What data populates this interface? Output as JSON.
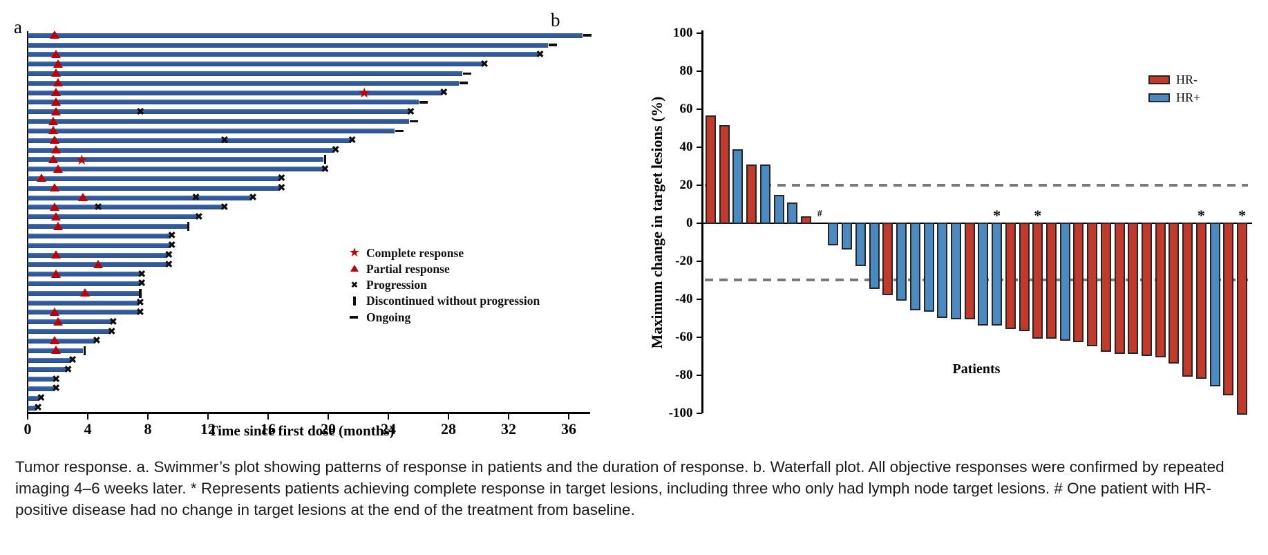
{
  "caption": "Tumor response. a. Swimmer’s plot showing patterns of response in patients and the duration of response. b. Waterfall plot. All objective responses were confirmed by repeated imaging 4–6 weeks later. * Represents patients achieving complete response in target lesions, including three who only had lymph node target lesions. # One patient with HR-positive disease had no change in target lesions at the end of the treatment from baseline.",
  "chart_data": [
    {
      "type": "swimmer",
      "panel_label": "a",
      "xlabel": "Time since first dose (months)",
      "xlim": [
        0,
        37.4
      ],
      "x_ticks": [
        0,
        4,
        8,
        12,
        16,
        20,
        24,
        28,
        32,
        36
      ],
      "bar_color": "#31599b",
      "response_marker_color": "#c00000",
      "progression_marker_color": "#0d0d0d",
      "legend": [
        {
          "marker": "star",
          "label": "Complete response"
        },
        {
          "marker": "triangle",
          "label": "Partial response"
        },
        {
          "marker": "x",
          "label": "Progression"
        },
        {
          "marker": "vbar",
          "label": "Discontinued without progression"
        },
        {
          "marker": "dash",
          "label": "Ongoing"
        }
      ],
      "patients": [
        {
          "duration": 36.9,
          "end": "ongoing",
          "events": [
            {
              "t": 1.8,
              "type": "pr"
            }
          ]
        },
        {
          "duration": 34.6,
          "end": "ongoing",
          "events": []
        },
        {
          "duration": 34.0,
          "end": "progression",
          "events": [
            {
              "t": 1.9,
              "type": "pr"
            }
          ]
        },
        {
          "duration": 30.3,
          "end": "progression",
          "events": [
            {
              "t": 2.0,
              "type": "pr"
            }
          ]
        },
        {
          "duration": 28.9,
          "end": "ongoing",
          "events": [
            {
              "t": 1.9,
              "type": "pr"
            }
          ]
        },
        {
          "duration": 28.7,
          "end": "ongoing",
          "events": [
            {
              "t": 2.0,
              "type": "pr"
            }
          ]
        },
        {
          "duration": 27.6,
          "end": "progression",
          "events": [
            {
              "t": 1.9,
              "type": "pr"
            },
            {
              "t": 22.4,
              "type": "cr"
            }
          ]
        },
        {
          "duration": 26.0,
          "end": "ongoing",
          "events": [
            {
              "t": 1.9,
              "type": "pr"
            }
          ]
        },
        {
          "duration": 25.4,
          "end": "progression",
          "events": [
            {
              "t": 1.9,
              "type": "pr"
            },
            {
              "t": 7.5,
              "type": "x"
            }
          ]
        },
        {
          "duration": 25.4,
          "end": "ongoing",
          "events": [
            {
              "t": 1.7,
              "type": "pr"
            }
          ]
        },
        {
          "duration": 24.4,
          "end": "ongoing",
          "events": [
            {
              "t": 1.7,
              "type": "pr"
            }
          ]
        },
        {
          "duration": 21.5,
          "end": "progression",
          "events": [
            {
              "t": 1.8,
              "type": "pr"
            },
            {
              "t": 13.1,
              "type": "x"
            }
          ]
        },
        {
          "duration": 20.4,
          "end": "progression",
          "events": [
            {
              "t": 1.9,
              "type": "pr"
            }
          ]
        },
        {
          "duration": 19.7,
          "end": "discontinued",
          "events": [
            {
              "t": 1.7,
              "type": "pr"
            },
            {
              "t": 3.6,
              "type": "cr"
            }
          ]
        },
        {
          "duration": 19.7,
          "end": "progression",
          "events": [
            {
              "t": 2.0,
              "type": "pr"
            }
          ]
        },
        {
          "duration": 16.8,
          "end": "progression",
          "events": [
            {
              "t": 0.9,
              "type": "pr"
            }
          ]
        },
        {
          "duration": 16.8,
          "end": "progression",
          "events": [
            {
              "t": 1.8,
              "type": "pr"
            }
          ]
        },
        {
          "duration": 14.9,
          "end": "progression",
          "events": [
            {
              "t": 3.7,
              "type": "pr"
            },
            {
              "t": 11.2,
              "type": "x"
            }
          ]
        },
        {
          "duration": 13.0,
          "end": "progression",
          "events": [
            {
              "t": 1.8,
              "type": "pr"
            },
            {
              "t": 4.7,
              "type": "x"
            }
          ]
        },
        {
          "duration": 11.3,
          "end": "progression",
          "events": [
            {
              "t": 1.9,
              "type": "pr"
            }
          ]
        },
        {
          "duration": 10.6,
          "end": "discontinued",
          "events": [
            {
              "t": 2.0,
              "type": "pr"
            }
          ]
        },
        {
          "duration": 9.5,
          "end": "progression",
          "events": []
        },
        {
          "duration": 9.5,
          "end": "progression",
          "events": []
        },
        {
          "duration": 9.3,
          "end": "progression",
          "events": [
            {
              "t": 1.9,
              "type": "pr"
            }
          ]
        },
        {
          "duration": 9.3,
          "end": "progression",
          "events": [
            {
              "t": 4.7,
              "type": "pr"
            }
          ]
        },
        {
          "duration": 7.5,
          "end": "progression",
          "events": [
            {
              "t": 1.9,
              "type": "pr"
            }
          ]
        },
        {
          "duration": 7.5,
          "end": "progression",
          "events": []
        },
        {
          "duration": 7.4,
          "end": "discontinued",
          "events": [
            {
              "t": 3.8,
              "type": "pr"
            }
          ]
        },
        {
          "duration": 7.4,
          "end": "progression",
          "events": []
        },
        {
          "duration": 7.4,
          "end": "progression",
          "events": [
            {
              "t": 1.8,
              "type": "pr"
            }
          ]
        },
        {
          "duration": 5.6,
          "end": "progression",
          "events": [
            {
              "t": 2.0,
              "type": "pr"
            }
          ]
        },
        {
          "duration": 5.5,
          "end": "progression",
          "events": []
        },
        {
          "duration": 4.5,
          "end": "progression",
          "events": [
            {
              "t": 1.8,
              "type": "pr"
            }
          ]
        },
        {
          "duration": 3.7,
          "end": "discontinued",
          "events": [
            {
              "t": 1.9,
              "type": "pr"
            }
          ]
        },
        {
          "duration": 2.9,
          "end": "progression",
          "events": []
        },
        {
          "duration": 2.6,
          "end": "progression",
          "events": []
        },
        {
          "duration": 1.8,
          "end": "progression",
          "events": []
        },
        {
          "duration": 1.8,
          "end": "progression",
          "events": []
        },
        {
          "duration": 0.8,
          "end": "progression",
          "events": []
        },
        {
          "duration": 0.6,
          "end": "progression",
          "events": []
        }
      ]
    },
    {
      "type": "waterfall",
      "panel_label": "b",
      "xlabel": "Patients",
      "ylabel": "Maximum change in target lesions (%)",
      "ylim": [
        -100,
        100
      ],
      "y_ticks": [
        100,
        80,
        60,
        40,
        20,
        0,
        -20,
        -40,
        -60,
        -80,
        -100
      ],
      "reference_lines": [
        20,
        -30
      ],
      "reference_line_color": "#7a7a7a",
      "colors": {
        "HR-": "#c13a2b",
        "HR+": "#4b8ac0"
      },
      "bar_outline_color": "#262626",
      "legend": [
        {
          "label": "HR-",
          "group": "HR-"
        },
        {
          "label": "HR+",
          "group": "HR+"
        }
      ],
      "bars": [
        {
          "value": 56,
          "group": "HR-"
        },
        {
          "value": 51,
          "group": "HR-"
        },
        {
          "value": 38,
          "group": "HR+"
        },
        {
          "value": 30,
          "group": "HR-"
        },
        {
          "value": 30,
          "group": "HR+"
        },
        {
          "value": 14,
          "group": "HR+"
        },
        {
          "value": 10,
          "group": "HR+"
        },
        {
          "value": 3,
          "group": "HR-"
        },
        {
          "value": 0,
          "group": "HR+",
          "annotation": "#"
        },
        {
          "value": -11,
          "group": "HR+"
        },
        {
          "value": -13,
          "group": "HR+"
        },
        {
          "value": -22,
          "group": "HR+"
        },
        {
          "value": -34,
          "group": "HR+"
        },
        {
          "value": -37,
          "group": "HR-"
        },
        {
          "value": -40,
          "group": "HR+"
        },
        {
          "value": -45,
          "group": "HR+"
        },
        {
          "value": -46,
          "group": "HR+"
        },
        {
          "value": -49,
          "group": "HR+"
        },
        {
          "value": -50,
          "group": "HR+"
        },
        {
          "value": -50,
          "group": "HR-"
        },
        {
          "value": -53,
          "group": "HR+"
        },
        {
          "value": -53,
          "group": "HR+",
          "annotation": "*"
        },
        {
          "value": -55,
          "group": "HR-"
        },
        {
          "value": -56,
          "group": "HR-"
        },
        {
          "value": -60,
          "group": "HR-",
          "annotation": "*"
        },
        {
          "value": -60,
          "group": "HR-"
        },
        {
          "value": -61,
          "group": "HR+"
        },
        {
          "value": -62,
          "group": "HR-"
        },
        {
          "value": -64,
          "group": "HR-"
        },
        {
          "value": -67,
          "group": "HR-"
        },
        {
          "value": -68,
          "group": "HR-"
        },
        {
          "value": -68,
          "group": "HR-"
        },
        {
          "value": -69,
          "group": "HR-"
        },
        {
          "value": -70,
          "group": "HR-"
        },
        {
          "value": -73,
          "group": "HR-"
        },
        {
          "value": -80,
          "group": "HR-"
        },
        {
          "value": -81,
          "group": "HR-",
          "annotation": "*"
        },
        {
          "value": -85,
          "group": "HR+"
        },
        {
          "value": -90,
          "group": "HR-"
        },
        {
          "value": -100,
          "group": "HR-",
          "annotation": "*"
        }
      ]
    }
  ]
}
